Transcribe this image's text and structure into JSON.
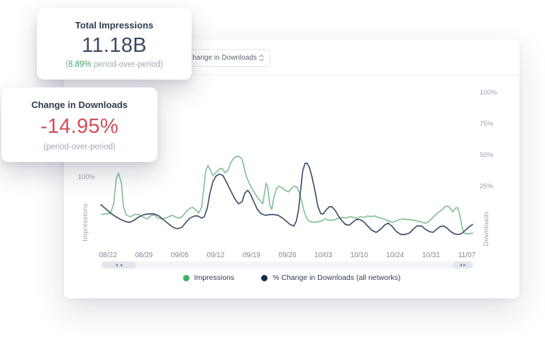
{
  "colors": {
    "positive_green": "#41a55e",
    "negative_red": "#ce4e58",
    "impressions_line": "#85c298",
    "impressions_legend_dot": "#3db263",
    "downloads_line": "#41526b",
    "downloads_legend_dot": "#1b2c4d",
    "text_navy": "#2f3b52"
  },
  "cards": {
    "total_impressions": {
      "title": "Total Impressions",
      "value": "11.18B",
      "sub_open": "(",
      "sub_highlight": "8.89%",
      "sub_rest": " period-over-period)"
    },
    "change_in_downloads": {
      "title": "Change in Downloads",
      "value": "-14.95%",
      "sub": "(period-over-period)"
    }
  },
  "panel": {
    "dropdown": {
      "selected": "Change in Downloads"
    },
    "scrollbar": {
      "left_arrow": "◂",
      "right_arrow": "▸"
    }
  },
  "chart_data": {
    "type": "line",
    "grid": false,
    "legend_position": "bottom",
    "x_tick_labels": [
      "08/22",
      "08/29",
      "09/05",
      "09/12",
      "09/19",
      "09/26",
      "10/03",
      "10/10",
      "10/24",
      "10/31",
      "11/07"
    ],
    "left_axis": {
      "label": "Impressions",
      "unit": "%",
      "visible_range_pct": [
        43,
        177
      ],
      "ticks": [
        {
          "value": 100,
          "label": "100%"
        }
      ]
    },
    "right_axis": {
      "label": "Downloads",
      "unit": "%",
      "visible_range_pct": [
        -24,
        109
      ],
      "ticks": [
        {
          "value": 100,
          "label": "100%"
        },
        {
          "value": 75,
          "label": "75%"
        },
        {
          "value": 50,
          "label": "50%"
        },
        {
          "value": 25,
          "label": "25%"
        }
      ]
    },
    "points_format": "[x_fraction_across_plot, value_percent_on_series_axis]",
    "series": [
      {
        "id": "impressions",
        "name": "Impressions",
        "axis": "left",
        "color": "#85c298",
        "legend_color": "#3db263",
        "points": [
          [
            0.006,
            70.5
          ],
          [
            0.019,
            71
          ],
          [
            0.03,
            71.6
          ],
          [
            0.038,
            79
          ],
          [
            0.045,
            98.9
          ],
          [
            0.051,
            103.4
          ],
          [
            0.059,
            95.5
          ],
          [
            0.064,
            77.3
          ],
          [
            0.072,
            69.9
          ],
          [
            0.083,
            68.8
          ],
          [
            0.095,
            70.5
          ],
          [
            0.106,
            70.5
          ],
          [
            0.117,
            68.2
          ],
          [
            0.129,
            67
          ],
          [
            0.138,
            69.9
          ],
          [
            0.148,
            69.9
          ],
          [
            0.157,
            67.6
          ],
          [
            0.167,
            67
          ],
          [
            0.176,
            67.6
          ],
          [
            0.186,
            68.8
          ],
          [
            0.195,
            69.9
          ],
          [
            0.205,
            68.2
          ],
          [
            0.214,
            67.6
          ],
          [
            0.223,
            69.3
          ],
          [
            0.233,
            73.3
          ],
          [
            0.242,
            75.6
          ],
          [
            0.25,
            76.1
          ],
          [
            0.258,
            73.9
          ],
          [
            0.265,
            71.6
          ],
          [
            0.273,
            76.1
          ],
          [
            0.278,
            89.8
          ],
          [
            0.284,
            105.7
          ],
          [
            0.29,
            109.7
          ],
          [
            0.297,
            105.7
          ],
          [
            0.303,
            101.7
          ],
          [
            0.313,
            104.5
          ],
          [
            0.32,
            106.8
          ],
          [
            0.328,
            107.4
          ],
          [
            0.335,
            104
          ],
          [
            0.343,
            105.7
          ],
          [
            0.35,
            111.4
          ],
          [
            0.358,
            115.3
          ],
          [
            0.366,
            117
          ],
          [
            0.373,
            117
          ],
          [
            0.381,
            114.8
          ],
          [
            0.386,
            108.5
          ],
          [
            0.392,
            101.1
          ],
          [
            0.4,
            95.5
          ],
          [
            0.407,
            91.5
          ],
          [
            0.415,
            87.5
          ],
          [
            0.422,
            84.1
          ],
          [
            0.43,
            81.3
          ],
          [
            0.436,
            79
          ],
          [
            0.441,
            87.5
          ],
          [
            0.445,
            95.5
          ],
          [
            0.449,
            92.6
          ],
          [
            0.455,
            78.4
          ],
          [
            0.46,
            74.4
          ],
          [
            0.466,
            84.1
          ],
          [
            0.472,
            90.9
          ],
          [
            0.479,
            93.2
          ],
          [
            0.487,
            92
          ],
          [
            0.494,
            90.3
          ],
          [
            0.5,
            89.2
          ],
          [
            0.506,
            88.6
          ],
          [
            0.511,
            90.9
          ],
          [
            0.517,
            92.6
          ],
          [
            0.523,
            93.2
          ],
          [
            0.528,
            92
          ],
          [
            0.534,
            87.5
          ],
          [
            0.54,
            81.3
          ],
          [
            0.545,
            74.4
          ],
          [
            0.551,
            69.3
          ],
          [
            0.557,
            65.9
          ],
          [
            0.564,
            64.8
          ],
          [
            0.574,
            64.2
          ],
          [
            0.583,
            64.8
          ],
          [
            0.593,
            65.3
          ],
          [
            0.602,
            67
          ],
          [
            0.612,
            65.9
          ],
          [
            0.621,
            65.9
          ],
          [
            0.631,
            66.5
          ],
          [
            0.64,
            67.6
          ],
          [
            0.65,
            68.2
          ],
          [
            0.659,
            67.6
          ],
          [
            0.668,
            68.8
          ],
          [
            0.678,
            68.2
          ],
          [
            0.688,
            67.6
          ],
          [
            0.697,
            68.8
          ],
          [
            0.706,
            68.2
          ],
          [
            0.716,
            69.3
          ],
          [
            0.725,
            68.8
          ],
          [
            0.735,
            69.3
          ],
          [
            0.744,
            68.2
          ],
          [
            0.754,
            67.6
          ],
          [
            0.763,
            66.5
          ],
          [
            0.773,
            65.3
          ],
          [
            0.782,
            64.2
          ],
          [
            0.792,
            65.3
          ],
          [
            0.801,
            66.5
          ],
          [
            0.811,
            67
          ],
          [
            0.82,
            66.5
          ],
          [
            0.83,
            66.5
          ],
          [
            0.839,
            65.9
          ],
          [
            0.848,
            65.3
          ],
          [
            0.858,
            64.8
          ],
          [
            0.867,
            63.6
          ],
          [
            0.877,
            64.2
          ],
          [
            0.886,
            67
          ],
          [
            0.896,
            69.9
          ],
          [
            0.905,
            72.2
          ],
          [
            0.915,
            74.4
          ],
          [
            0.922,
            76.7
          ],
          [
            0.93,
            77.3
          ],
          [
            0.938,
            75
          ],
          [
            0.943,
            72.7
          ],
          [
            0.951,
            75.6
          ],
          [
            0.956,
            76.1
          ],
          [
            0.962,
            70.5
          ],
          [
            0.968,
            60.2
          ],
          [
            0.973,
            55.7
          ],
          [
            0.981,
            55.1
          ],
          [
            0.989,
            55.1
          ],
          [
            0.996,
            55.7
          ]
        ]
      },
      {
        "id": "downloads_change",
        "name": "% Change in Downloads (all networks)",
        "axis": "right",
        "color": "#41526b",
        "legend_color": "#1b2c4d",
        "points": [
          [
            0.004,
            10.8
          ],
          [
            0.017,
            7.4
          ],
          [
            0.03,
            4
          ],
          [
            0.044,
            1.1
          ],
          [
            0.057,
            -1.1
          ],
          [
            0.07,
            -2.8
          ],
          [
            0.081,
            -3.4
          ],
          [
            0.093,
            -1.7
          ],
          [
            0.106,
            1.1
          ],
          [
            0.119,
            2.8
          ],
          [
            0.133,
            3.4
          ],
          [
            0.146,
            3.4
          ],
          [
            0.159,
            1.7
          ],
          [
            0.17,
            -1.1
          ],
          [
            0.184,
            -4.5
          ],
          [
            0.197,
            -7.4
          ],
          [
            0.208,
            -8.5
          ],
          [
            0.22,
            -7.4
          ],
          [
            0.231,
            -3.4
          ],
          [
            0.242,
            0
          ],
          [
            0.254,
            1.7
          ],
          [
            0.263,
            1.7
          ],
          [
            0.273,
            0
          ],
          [
            0.28,
            1.1
          ],
          [
            0.288,
            8
          ],
          [
            0.295,
            19.9
          ],
          [
            0.303,
            29
          ],
          [
            0.311,
            33.5
          ],
          [
            0.32,
            35.2
          ],
          [
            0.33,
            34.1
          ],
          [
            0.339,
            29
          ],
          [
            0.35,
            22.2
          ],
          [
            0.362,
            15.3
          ],
          [
            0.371,
            11.4
          ],
          [
            0.381,
            13.1
          ],
          [
            0.388,
            19.9
          ],
          [
            0.396,
            22.2
          ],
          [
            0.403,
            19.3
          ],
          [
            0.413,
            12.5
          ],
          [
            0.422,
            6.8
          ],
          [
            0.432,
            3.4
          ],
          [
            0.443,
            2.3
          ],
          [
            0.455,
            2.8
          ],
          [
            0.466,
            2.8
          ],
          [
            0.477,
            2.3
          ],
          [
            0.489,
            0
          ],
          [
            0.5,
            -2.8
          ],
          [
            0.509,
            -5.1
          ],
          [
            0.519,
            -6.3
          ],
          [
            0.526,
            -2.3
          ],
          [
            0.532,
            7.4
          ],
          [
            0.538,
            25
          ],
          [
            0.543,
            38.1
          ],
          [
            0.549,
            43.8
          ],
          [
            0.555,
            43.8
          ],
          [
            0.561,
            40.3
          ],
          [
            0.568,
            32.4
          ],
          [
            0.576,
            21
          ],
          [
            0.583,
            9.7
          ],
          [
            0.591,
            3.4
          ],
          [
            0.598,
            3.4
          ],
          [
            0.606,
            6.8
          ],
          [
            0.614,
            9.1
          ],
          [
            0.621,
            9.1
          ],
          [
            0.629,
            6.3
          ],
          [
            0.638,
            1.7
          ],
          [
            0.648,
            -2.3
          ],
          [
            0.657,
            -5.1
          ],
          [
            0.667,
            -5.7
          ],
          [
            0.676,
            -3.4
          ],
          [
            0.686,
            -1.1
          ],
          [
            0.695,
            -1.1
          ],
          [
            0.705,
            -2.8
          ],
          [
            0.716,
            -6.3
          ],
          [
            0.727,
            -9.7
          ],
          [
            0.739,
            -11.4
          ],
          [
            0.75,
            -9.1
          ],
          [
            0.761,
            -5.7
          ],
          [
            0.771,
            -4
          ],
          [
            0.782,
            -6.8
          ],
          [
            0.793,
            -10.8
          ],
          [
            0.805,
            -13.1
          ],
          [
            0.816,
            -13.1
          ],
          [
            0.828,
            -11.9
          ],
          [
            0.839,
            -8.5
          ],
          [
            0.848,
            -6.3
          ],
          [
            0.86,
            -6.3
          ],
          [
            0.871,
            -9.1
          ],
          [
            0.881,
            -10.8
          ],
          [
            0.89,
            -11.4
          ],
          [
            0.9,
            -9.1
          ],
          [
            0.909,
            -6.8
          ],
          [
            0.919,
            -6.3
          ],
          [
            0.928,
            -8
          ],
          [
            0.938,
            -10.8
          ],
          [
            0.947,
            -12.5
          ],
          [
            0.956,
            -13.1
          ],
          [
            0.966,
            -12.5
          ],
          [
            0.975,
            -10.2
          ],
          [
            0.985,
            -7.4
          ],
          [
            0.996,
            -5.1
          ]
        ]
      }
    ]
  }
}
